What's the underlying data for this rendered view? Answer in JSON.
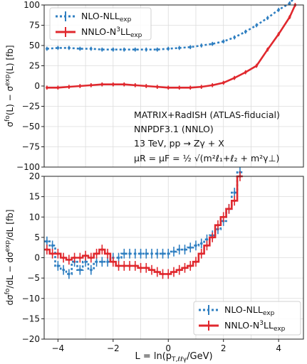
{
  "colors": {
    "nll": "#2f7fc1",
    "n3ll": "#e0282e"
  },
  "chart_data": [
    {
      "type": "line",
      "ylabel": "σ^fo(L) − σ^exp(L) [fb]",
      "xlim": [
        -4.5,
        4.9
      ],
      "ylim": [
        -100,
        100
      ],
      "grid": true,
      "yticks": [
        "−100",
        "−75",
        "−50",
        "−25",
        "0",
        "25",
        "50",
        "75",
        "100"
      ],
      "legend_position": "top-left",
      "annotation": [
        "MATRIX+RadISH (ATLAS-fiducial)",
        "NNPDF3.1 (NNLO)",
        "13 TeV, pp → Zγ + X",
        "μR = μF = ½ √(m²ℓ₁+ℓ₂ + m²γ⊥)"
      ],
      "series": [
        {
          "name": "NLO-NLLexp",
          "style": "dotted",
          "x": [
            -4.4,
            -4.0,
            -3.6,
            -3.2,
            -2.8,
            -2.4,
            -2.0,
            -1.6,
            -1.2,
            -0.8,
            -0.4,
            0.0,
            0.4,
            0.8,
            1.2,
            1.6,
            2.0,
            2.4,
            2.8,
            3.2,
            3.6,
            4.0,
            4.4,
            4.6
          ],
          "y": [
            46,
            47,
            47,
            46,
            46,
            45,
            45,
            45,
            45,
            45,
            45,
            46,
            47,
            48,
            50,
            52,
            55,
            60,
            67,
            75,
            84,
            94,
            102,
            110
          ]
        },
        {
          "name": "NNLO-N3LLexp",
          "style": "solid",
          "x": [
            -4.4,
            -4.0,
            -3.6,
            -3.2,
            -2.8,
            -2.4,
            -2.0,
            -1.6,
            -1.2,
            -0.8,
            -0.4,
            0.0,
            0.4,
            0.8,
            1.2,
            1.6,
            2.0,
            2.4,
            2.8,
            3.2,
            3.6,
            4.0,
            4.4,
            4.6
          ],
          "y": [
            -2,
            -2,
            -1,
            0,
            1,
            2,
            2,
            2,
            1,
            0,
            -1,
            -2,
            -2,
            -2,
            -1,
            1,
            4,
            10,
            17,
            25,
            45,
            64,
            85,
            100
          ]
        }
      ]
    },
    {
      "type": "line",
      "xlabel": "L = ln(pT,ℓℓγ/GeV)",
      "ylabel": "dσ^fo/dL − dσ^exp/dL [fb]",
      "xlim": [
        -4.5,
        4.9
      ],
      "ylim": [
        -20,
        20
      ],
      "grid": true,
      "xticks": [
        -4,
        -2,
        0,
        2,
        4
      ],
      "xtick_labels": [
        "−4",
        "−2",
        "0",
        "2",
        "4"
      ],
      "yticks": [
        "−20",
        "−15",
        "−10",
        "−5",
        "0",
        "5",
        "10",
        "15",
        "20"
      ],
      "legend_position": "bottom-right",
      "series": [
        {
          "name": "NLO-NLLexp",
          "style": "dotted-steps",
          "x": [
            -4.4,
            -4.2,
            -4.0,
            -3.8,
            -3.6,
            -3.4,
            -3.2,
            -3.0,
            -2.8,
            -2.6,
            -2.4,
            -2.2,
            -2.0,
            -1.8,
            -1.6,
            -1.4,
            -1.2,
            -1.0,
            -0.8,
            -0.6,
            -0.4,
            -0.2,
            0.0,
            0.2,
            0.4,
            0.6,
            0.8,
            1.0,
            1.2,
            1.4,
            1.6,
            1.8,
            2.0,
            2.2,
            2.4,
            2.6
          ],
          "y": [
            4,
            3,
            -2,
            -3,
            -4,
            -1,
            -3,
            -1,
            -3,
            -1,
            -1,
            -1,
            0,
            0,
            1,
            1,
            1,
            1,
            1,
            1,
            1,
            1,
            1,
            1.5,
            2,
            2,
            2.5,
            3,
            3.5,
            4.5,
            5.5,
            7,
            9,
            12,
            16,
            21
          ]
        },
        {
          "name": "NNLO-N3LLexp",
          "style": "solid-steps",
          "x": [
            -4.4,
            -4.2,
            -4.0,
            -3.8,
            -3.6,
            -3.4,
            -3.2,
            -3.0,
            -2.8,
            -2.6,
            -2.4,
            -2.2,
            -2.0,
            -1.8,
            -1.6,
            -1.4,
            -1.2,
            -1.0,
            -0.8,
            -0.6,
            -0.4,
            -0.2,
            0.0,
            0.2,
            0.4,
            0.6,
            0.8,
            1.0,
            1.2,
            1.4,
            1.6,
            1.8,
            2.0,
            2.2,
            2.4,
            2.6
          ],
          "y": [
            2,
            1,
            1,
            0,
            -0.5,
            0,
            0,
            0.5,
            0,
            1,
            2,
            1,
            -1,
            -2,
            -2,
            -2,
            -2,
            -2.5,
            -2.5,
            -3,
            -3.5,
            -4,
            -4,
            -3.5,
            -3,
            -2.5,
            -2,
            -1,
            1,
            3,
            5,
            8,
            10,
            12,
            14,
            20
          ]
        }
      ]
    }
  ]
}
